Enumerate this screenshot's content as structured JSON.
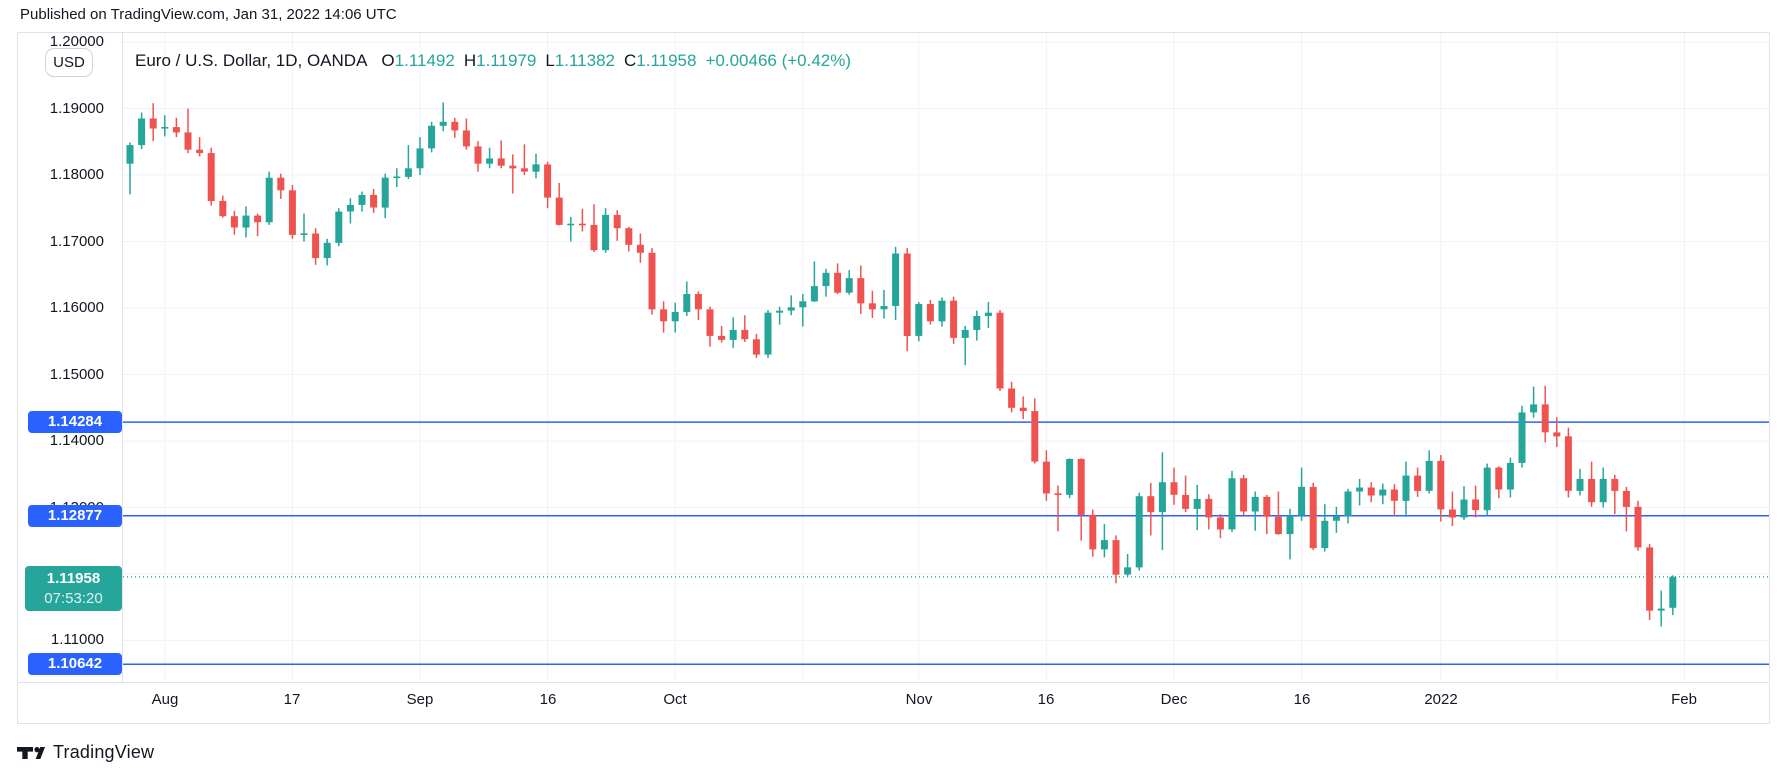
{
  "banner": {
    "text": "Published on TradingView.com, Jan 31, 2022 14:06 UTC"
  },
  "toolbar": {
    "currency_button": "USD"
  },
  "legend": {
    "title": "Euro / U.S. Dollar, 1D, OANDA",
    "ohlc": [
      {
        "label": "O",
        "value": "1.11492"
      },
      {
        "label": "H",
        "value": "1.11979"
      },
      {
        "label": "L",
        "value": "1.11382"
      },
      {
        "label": "C",
        "value": "1.11958"
      }
    ],
    "change": "+0.00466 (+0.42%)"
  },
  "price_lines": [
    {
      "label": "1.14284",
      "price": 1.14284,
      "style": "solid",
      "color": "#2962ff"
    },
    {
      "label": "1.12877",
      "price": 1.12877,
      "style": "solid",
      "color": "#2962ff"
    },
    {
      "label": "1.11958",
      "sub_label": "07:53:20",
      "price": 1.11958,
      "style": "dotted",
      "color": "#26a69a"
    },
    {
      "label": "1.10642",
      "price": 1.10642,
      "style": "solid",
      "color": "#2962ff"
    }
  ],
  "footer": {
    "brand": "TradingView"
  },
  "chart_data": {
    "type": "candlestick",
    "title": "Euro / U.S. Dollar, 1D, OANDA",
    "up_color": "#26a69a",
    "down_color": "#ef5350",
    "grid": true,
    "y_axis": {
      "side": "left",
      "min": 1.104,
      "max": 1.2014,
      "ticks": [
        {
          "label": "1.20000",
          "price": 1.2
        },
        {
          "label": "1.19000",
          "price": 1.19
        },
        {
          "label": "1.18000",
          "price": 1.18
        },
        {
          "label": "1.17000",
          "price": 1.17
        },
        {
          "label": "1.16000",
          "price": 1.16
        },
        {
          "label": "1.15000",
          "price": 1.15
        },
        {
          "label": "1.14000",
          "price": 1.14
        },
        {
          "label": "1.13000",
          "price": 1.13
        },
        {
          "label": "1.12000",
          "price": 1.12
        },
        {
          "label": "1.11000",
          "price": 1.11
        }
      ]
    },
    "x_axis": {
      "ticks": [
        {
          "label": "Aug",
          "index": 3
        },
        {
          "label": "17",
          "index": 14
        },
        {
          "label": "Sep",
          "index": 25
        },
        {
          "label": "16",
          "index": 36
        },
        {
          "label": "Oct",
          "index": 47
        },
        {
          "label": "",
          "index": 58
        },
        {
          "label": "Nov",
          "index": 68
        },
        {
          "label": "16",
          "index": 79
        },
        {
          "label": "Dec",
          "index": 90
        },
        {
          "label": "16",
          "index": 101
        },
        {
          "label": "2022",
          "index": 113
        },
        {
          "label": "",
          "index": 123
        },
        {
          "label": "Feb",
          "index": 134
        }
      ]
    },
    "columns": [
      "date",
      "open",
      "high",
      "low",
      "close"
    ],
    "candles": [
      [
        "Jul 28",
        1.1817,
        1.1849,
        1.1771,
        1.1845
      ],
      [
        "Jul 29",
        1.1845,
        1.1894,
        1.1839,
        1.1885
      ],
      [
        "Jul 30",
        1.1885,
        1.1908,
        1.1851,
        1.187
      ],
      [
        "Aug 2",
        1.187,
        1.189,
        1.1858,
        1.1872
      ],
      [
        "Aug 3",
        1.1872,
        1.1886,
        1.1857,
        1.1864
      ],
      [
        "Aug 4",
        1.1864,
        1.19,
        1.1833,
        1.1838
      ],
      [
        "Aug 5",
        1.1838,
        1.1857,
        1.1828,
        1.1833
      ],
      [
        "Aug 6",
        1.1833,
        1.1841,
        1.1754,
        1.1761
      ],
      [
        "Aug 9",
        1.1761,
        1.1769,
        1.1736,
        1.1738
      ],
      [
        "Aug 10",
        1.1738,
        1.1746,
        1.171,
        1.1721
      ],
      [
        "Aug 11",
        1.1721,
        1.1753,
        1.1706,
        1.1739
      ],
      [
        "Aug 12",
        1.1739,
        1.1742,
        1.1708,
        1.1729
      ],
      [
        "Aug 13",
        1.1729,
        1.1805,
        1.1725,
        1.1796
      ],
      [
        "Aug 16",
        1.1796,
        1.1802,
        1.1764,
        1.1777
      ],
      [
        "Aug 17",
        1.1777,
        1.1785,
        1.1704,
        1.171
      ],
      [
        "Aug 18",
        1.171,
        1.1742,
        1.17,
        1.1712
      ],
      [
        "Aug 19",
        1.1712,
        1.172,
        1.1665,
        1.1675
      ],
      [
        "Aug 20",
        1.1675,
        1.1704,
        1.1664,
        1.1698
      ],
      [
        "Aug 23",
        1.1698,
        1.175,
        1.1693,
        1.1745
      ],
      [
        "Aug 24",
        1.1745,
        1.1765,
        1.1727,
        1.1755
      ],
      [
        "Aug 25",
        1.1755,
        1.1775,
        1.1745,
        1.177
      ],
      [
        "Aug 26",
        1.177,
        1.1779,
        1.1743,
        1.1751
      ],
      [
        "Aug 27",
        1.1751,
        1.1802,
        1.1735,
        1.1796
      ],
      [
        "Aug 30",
        1.1796,
        1.181,
        1.1782,
        1.1797
      ],
      [
        "Aug 31",
        1.1797,
        1.1845,
        1.1794,
        1.181
      ],
      [
        "Sep 1",
        1.181,
        1.1857,
        1.18,
        1.184
      ],
      [
        "Sep 2",
        1.184,
        1.188,
        1.1834,
        1.1874
      ],
      [
        "Sep 3",
        1.1874,
        1.1909,
        1.1866,
        1.188
      ],
      [
        "Sep 6",
        1.188,
        1.1886,
        1.1856,
        1.1867
      ],
      [
        "Sep 7",
        1.1867,
        1.1885,
        1.1838,
        1.1843
      ],
      [
        "Sep 8",
        1.1843,
        1.1851,
        1.1805,
        1.1817
      ],
      [
        "Sep 9",
        1.1817,
        1.1841,
        1.181,
        1.1825
      ],
      [
        "Sep 10",
        1.1825,
        1.1852,
        1.181,
        1.1814
      ],
      [
        "Sep 13",
        1.1814,
        1.1831,
        1.1772,
        1.181
      ],
      [
        "Sep 14",
        1.181,
        1.1846,
        1.18,
        1.1805
      ],
      [
        "Sep 15",
        1.1805,
        1.1832,
        1.1795,
        1.1816
      ],
      [
        "Sep 16",
        1.1816,
        1.182,
        1.175,
        1.1766
      ],
      [
        "Sep 17",
        1.1766,
        1.1788,
        1.1724,
        1.1725
      ],
      [
        "Sep 20",
        1.1725,
        1.1737,
        1.17,
        1.1726
      ],
      [
        "Sep 21",
        1.1726,
        1.1749,
        1.1715,
        1.1725
      ],
      [
        "Sep 22",
        1.1725,
        1.1756,
        1.1684,
        1.1687
      ],
      [
        "Sep 23",
        1.1687,
        1.175,
        1.1683,
        1.174
      ],
      [
        "Sep 24",
        1.174,
        1.1747,
        1.1701,
        1.172
      ],
      [
        "Sep 27",
        1.172,
        1.1722,
        1.1685,
        1.1695
      ],
      [
        "Sep 28",
        1.1695,
        1.1712,
        1.1668,
        1.1683
      ],
      [
        "Sep 29",
        1.1683,
        1.169,
        1.159,
        1.1598
      ],
      [
        "Sep 30",
        1.1598,
        1.161,
        1.1563,
        1.158
      ],
      [
        "Oct 1",
        1.158,
        1.1608,
        1.1563,
        1.1594
      ],
      [
        "Oct 4",
        1.1594,
        1.164,
        1.1588,
        1.1621
      ],
      [
        "Oct 5",
        1.1621,
        1.1625,
        1.1582,
        1.1598
      ],
      [
        "Oct 6",
        1.1598,
        1.1602,
        1.1542,
        1.1558
      ],
      [
        "Oct 7",
        1.1558,
        1.1573,
        1.1548,
        1.1552
      ],
      [
        "Oct 8",
        1.1552,
        1.1586,
        1.154,
        1.1567
      ],
      [
        "Oct 11",
        1.1567,
        1.1589,
        1.1549,
        1.1553
      ],
      [
        "Oct 12",
        1.1553,
        1.1561,
        1.1525,
        1.153
      ],
      [
        "Oct 13",
        1.153,
        1.1597,
        1.1525,
        1.1593
      ],
      [
        "Oct 14",
        1.1593,
        1.1602,
        1.1575,
        1.1596
      ],
      [
        "Oct 15",
        1.1596,
        1.1619,
        1.1589,
        1.1601
      ],
      [
        "Oct 18",
        1.1601,
        1.1621,
        1.1572,
        1.161
      ],
      [
        "Oct 19",
        1.161,
        1.167,
        1.1609,
        1.1633
      ],
      [
        "Oct 20",
        1.1633,
        1.1659,
        1.1617,
        1.1653
      ],
      [
        "Oct 21",
        1.1653,
        1.1667,
        1.1621,
        1.1623
      ],
      [
        "Oct 22",
        1.1623,
        1.1657,
        1.162,
        1.1645
      ],
      [
        "Oct 25",
        1.1645,
        1.1664,
        1.1591,
        1.1607
      ],
      [
        "Oct 26",
        1.1607,
        1.1626,
        1.1585,
        1.1598
      ],
      [
        "Oct 27",
        1.1598,
        1.1627,
        1.1584,
        1.1603
      ],
      [
        "Oct 28",
        1.1603,
        1.1692,
        1.1582,
        1.1682
      ],
      [
        "Oct 29",
        1.1682,
        1.169,
        1.1535,
        1.1558
      ],
      [
        "Nov 1",
        1.1558,
        1.1609,
        1.155,
        1.1606
      ],
      [
        "Nov 2",
        1.1606,
        1.1612,
        1.1575,
        1.158
      ],
      [
        "Nov 3",
        1.158,
        1.1616,
        1.1572,
        1.1611
      ],
      [
        "Nov 4",
        1.1611,
        1.1617,
        1.1546,
        1.1555
      ],
      [
        "Nov 5",
        1.1555,
        1.1573,
        1.1514,
        1.1567
      ],
      [
        "Nov 8",
        1.1567,
        1.1596,
        1.1551,
        1.1588
      ],
      [
        "Nov 9",
        1.1588,
        1.1609,
        1.157,
        1.1593
      ],
      [
        "Nov 10",
        1.1593,
        1.1597,
        1.1475,
        1.1479
      ],
      [
        "Nov 11",
        1.1479,
        1.1489,
        1.1443,
        1.145
      ],
      [
        "Nov 12",
        1.145,
        1.1467,
        1.1433,
        1.1445
      ],
      [
        "Nov 15",
        1.1445,
        1.1464,
        1.1366,
        1.1369
      ],
      [
        "Nov 16",
        1.1369,
        1.1386,
        1.131,
        1.1321
      ],
      [
        "Nov 17",
        1.1321,
        1.1333,
        1.1264,
        1.1319
      ],
      [
        "Nov 18",
        1.1319,
        1.1374,
        1.1314,
        1.1373
      ],
      [
        "Nov 19",
        1.1373,
        1.1374,
        1.125,
        1.1289
      ],
      [
        "Nov 22",
        1.1289,
        1.1297,
        1.1226,
        1.1237
      ],
      [
        "Nov 23",
        1.1237,
        1.1275,
        1.1225,
        1.1251
      ],
      [
        "Nov 24",
        1.1251,
        1.1258,
        1.1186,
        1.1199
      ],
      [
        "Nov 25",
        1.1199,
        1.123,
        1.1196,
        1.121
      ],
      [
        "Nov 26",
        1.121,
        1.1322,
        1.1205,
        1.1317
      ],
      [
        "Nov 29",
        1.1317,
        1.1337,
        1.1258,
        1.1293
      ],
      [
        "Nov 30",
        1.1293,
        1.1383,
        1.1236,
        1.1338
      ],
      [
        "Dec 1",
        1.1338,
        1.136,
        1.1304,
        1.1319
      ],
      [
        "Dec 2",
        1.1319,
        1.1348,
        1.1293,
        1.1298
      ],
      [
        "Dec 3",
        1.1298,
        1.1334,
        1.1266,
        1.1313
      ],
      [
        "Dec 6",
        1.1313,
        1.132,
        1.1267,
        1.1285
      ],
      [
        "Dec 7",
        1.1285,
        1.129,
        1.1254,
        1.1267
      ],
      [
        "Dec 8",
        1.1267,
        1.1355,
        1.1263,
        1.1344
      ],
      [
        "Dec 9",
        1.1344,
        1.1349,
        1.1288,
        1.1294
      ],
      [
        "Dec 10",
        1.1294,
        1.1324,
        1.1265,
        1.1316
      ],
      [
        "Dec 13",
        1.1316,
        1.1319,
        1.126,
        1.1286
      ],
      [
        "Dec 14",
        1.1286,
        1.1324,
        1.1259,
        1.126
      ],
      [
        "Dec 15",
        1.126,
        1.1298,
        1.1222,
        1.1288
      ],
      [
        "Dec 16",
        1.1288,
        1.136,
        1.128,
        1.1331
      ],
      [
        "Dec 17",
        1.1331,
        1.1337,
        1.1236,
        1.1239
      ],
      [
        "Dec 20",
        1.1239,
        1.1305,
        1.1234,
        1.128
      ],
      [
        "Dec 21",
        1.128,
        1.1301,
        1.1262,
        1.1287
      ],
      [
        "Dec 22",
        1.1287,
        1.1328,
        1.1276,
        1.1324
      ],
      [
        "Dec 23",
        1.1324,
        1.1343,
        1.1303,
        1.133
      ],
      [
        "Dec 24",
        1.133,
        1.1338,
        1.1308,
        1.1318
      ],
      [
        "Dec 27",
        1.1318,
        1.1336,
        1.1305,
        1.1327
      ],
      [
        "Dec 28",
        1.1327,
        1.1335,
        1.1287,
        1.131
      ],
      [
        "Dec 29",
        1.131,
        1.1369,
        1.1286,
        1.1348
      ],
      [
        "Dec 30",
        1.1348,
        1.136,
        1.1316,
        1.1325
      ],
      [
        "Dec 31",
        1.1325,
        1.1386,
        1.1321,
        1.137
      ],
      [
        "Jan 3",
        1.137,
        1.1379,
        1.1279,
        1.1297
      ],
      [
        "Jan 4",
        1.1297,
        1.1324,
        1.1272,
        1.1285
      ],
      [
        "Jan 5",
        1.1285,
        1.1332,
        1.1281,
        1.1312
      ],
      [
        "Jan 6",
        1.1312,
        1.1333,
        1.1285,
        1.1296
      ],
      [
        "Jan 7",
        1.1296,
        1.1366,
        1.1288,
        1.136
      ],
      [
        "Jan 10",
        1.136,
        1.1362,
        1.1314,
        1.1327
      ],
      [
        "Jan 11",
        1.1327,
        1.1375,
        1.1315,
        1.1367
      ],
      [
        "Jan 12",
        1.1367,
        1.1453,
        1.136,
        1.1443
      ],
      [
        "Jan 13",
        1.1443,
        1.1482,
        1.1435,
        1.1455
      ],
      [
        "Jan 14",
        1.1455,
        1.1483,
        1.1398,
        1.1413
      ],
      [
        "Jan 17",
        1.1413,
        1.1436,
        1.1391,
        1.1407
      ],
      [
        "Jan 18",
        1.1407,
        1.142,
        1.1315,
        1.1325
      ],
      [
        "Jan 19",
        1.1325,
        1.1358,
        1.1318,
        1.1343
      ],
      [
        "Jan 20",
        1.1343,
        1.1369,
        1.1301,
        1.1308
      ],
      [
        "Jan 21",
        1.1308,
        1.136,
        1.13,
        1.1343
      ],
      [
        "Jan 24",
        1.1343,
        1.1349,
        1.129,
        1.1325
      ],
      [
        "Jan 25",
        1.1325,
        1.1331,
        1.1264,
        1.1301
      ],
      [
        "Jan 26",
        1.1301,
        1.131,
        1.1235,
        1.124
      ],
      [
        "Jan 27",
        1.124,
        1.1245,
        1.1131,
        1.1145
      ],
      [
        "Jan 28",
        1.1145,
        1.1175,
        1.1121,
        1.1148
      ],
      [
        "Jan 31",
        1.11492,
        1.11979,
        1.11382,
        1.11958
      ]
    ]
  }
}
